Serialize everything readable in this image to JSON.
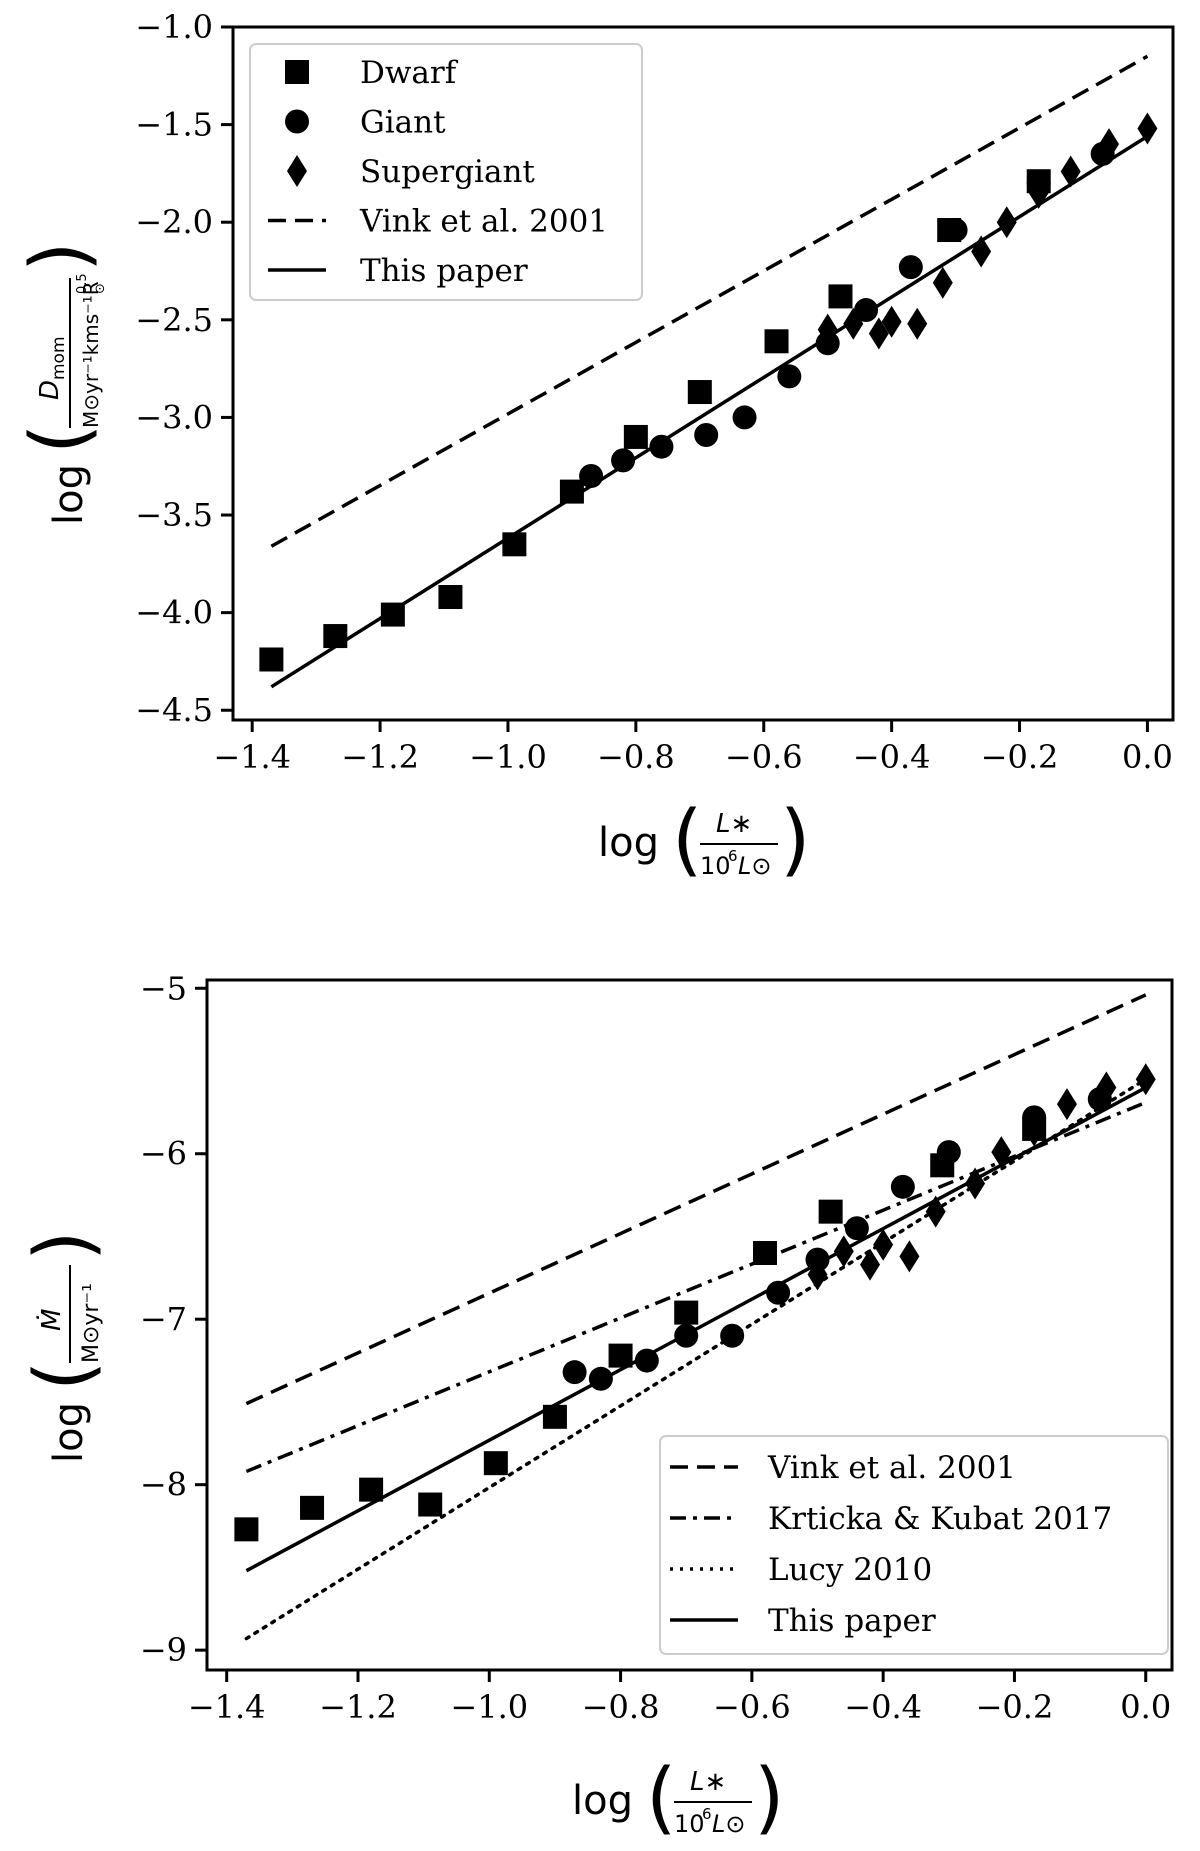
{
  "chart_data": [
    {
      "id": "top",
      "type": "scatter",
      "title": "",
      "xlabel": "log(L*/10^6 L⊙)",
      "ylabel": "log(D_mom / M⊙ yr^-1 kms^-1 R⊙^0.5)",
      "xlim": [
        -1.43,
        0.04
      ],
      "ylim": [
        -4.55,
        -1.0
      ],
      "xticks": [
        -1.4,
        -1.2,
        -1.0,
        -0.8,
        -0.6,
        -0.4,
        -0.2,
        0.0
      ],
      "xtick_labels": [
        "−1.4",
        "−1.2",
        "−1.0",
        "−0.8",
        "−0.6",
        "−0.4",
        "−0.2",
        "0.0"
      ],
      "yticks": [
        -4.5,
        -4.0,
        -3.5,
        -3.0,
        -2.5,
        -2.0,
        -1.5,
        -1.0
      ],
      "ytick_labels": [
        "−4.5",
        "−4.0",
        "−3.5",
        "−3.0",
        "−2.5",
        "−2.0",
        "−1.5",
        "−1.0"
      ],
      "legend_position": "upper-left",
      "series": [
        {
          "name": "Dwarf",
          "marker": "square",
          "x": [
            -1.37,
            -1.27,
            -1.18,
            -1.09,
            -0.99,
            -0.9,
            -0.8,
            -0.7,
            -0.58,
            -0.48,
            -0.31,
            -0.17
          ],
          "y": [
            -4.24,
            -4.12,
            -4.01,
            -3.92,
            -3.65,
            -3.38,
            -3.1,
            -2.87,
            -2.61,
            -2.38,
            -2.04,
            -1.79
          ]
        },
        {
          "name": "Giant",
          "marker": "circle",
          "x": [
            -0.87,
            -0.82,
            -0.76,
            -0.69,
            -0.63,
            -0.56,
            -0.5,
            -0.44,
            -0.37,
            -0.3,
            -0.17,
            -0.07
          ],
          "y": [
            -3.3,
            -3.22,
            -3.15,
            -3.09,
            -3.0,
            -2.79,
            -2.62,
            -2.45,
            -2.23,
            -2.04,
            -1.8,
            -1.65
          ]
        },
        {
          "name": "Supergiant",
          "marker": "diamond",
          "x": [
            -0.5,
            -0.46,
            -0.42,
            -0.4,
            -0.36,
            -0.32,
            -0.26,
            -0.22,
            -0.17,
            -0.12,
            -0.06,
            0.0
          ],
          "y": [
            -2.55,
            -2.52,
            -2.57,
            -2.51,
            -2.52,
            -2.31,
            -2.15,
            -2.0,
            -1.85,
            -1.74,
            -1.6,
            -1.52
          ]
        },
        {
          "name": "Vink et al. 2001",
          "style": "dashed",
          "x": [
            -1.37,
            0.0
          ],
          "y": [
            -3.66,
            -1.15
          ]
        },
        {
          "name": "This paper",
          "style": "solid",
          "x": [
            -1.37,
            0.0
          ],
          "y": [
            -4.38,
            -1.56
          ]
        }
      ]
    },
    {
      "id": "bottom",
      "type": "scatter",
      "title": "",
      "xlabel": "log(L*/10^6 L⊙)",
      "ylabel": "log(Ṁ / M⊙ yr^-1)",
      "xlim": [
        -1.43,
        0.04
      ],
      "ylim": [
        -9.12,
        -4.95
      ],
      "xticks": [
        -1.4,
        -1.2,
        -1.0,
        -0.8,
        -0.6,
        -0.4,
        -0.2,
        0.0
      ],
      "xtick_labels": [
        "−1.4",
        "−1.2",
        "−1.0",
        "−0.8",
        "−0.6",
        "−0.4",
        "−0.2",
        "0.0"
      ],
      "yticks": [
        -9,
        -8,
        -7,
        -6,
        -5
      ],
      "ytick_labels": [
        "−9",
        "−8",
        "−7",
        "−6",
        "−5"
      ],
      "legend_position": "lower-right",
      "series": [
        {
          "name": "Dwarf",
          "marker": "square",
          "x": [
            -1.37,
            -1.27,
            -1.18,
            -1.09,
            -0.99,
            -0.9,
            -0.8,
            -0.7,
            -0.58,
            -0.48,
            -0.31,
            -0.17
          ],
          "y": [
            -8.27,
            -8.14,
            -8.03,
            -8.12,
            -7.87,
            -7.59,
            -7.22,
            -6.96,
            -6.6,
            -6.35,
            -6.07,
            -5.85
          ]
        },
        {
          "name": "Giant",
          "marker": "circle",
          "x": [
            -0.87,
            -0.83,
            -0.76,
            -0.7,
            -0.63,
            -0.56,
            -0.5,
            -0.44,
            -0.37,
            -0.3,
            -0.17,
            -0.07
          ],
          "y": [
            -7.32,
            -7.36,
            -7.25,
            -7.1,
            -7.1,
            -6.84,
            -6.64,
            -6.45,
            -6.2,
            -5.99,
            -5.78,
            -5.67
          ]
        },
        {
          "name": "Supergiant",
          "marker": "diamond",
          "x": [
            -0.5,
            -0.46,
            -0.42,
            -0.4,
            -0.36,
            -0.32,
            -0.26,
            -0.22,
            -0.17,
            -0.12,
            -0.06,
            0.0
          ],
          "y": [
            -6.73,
            -6.59,
            -6.67,
            -6.55,
            -6.62,
            -6.35,
            -6.18,
            -5.99,
            -5.86,
            -5.7,
            -5.6,
            -5.55
          ]
        },
        {
          "name": "Vink et al. 2001",
          "style": "dashed",
          "x": [
            -1.37,
            0.0
          ],
          "y": [
            -7.51,
            -5.04
          ]
        },
        {
          "name": "Krticka & Kubat 2017",
          "style": "dashdot",
          "x": [
            -1.37,
            0.0
          ],
          "y": [
            -7.92,
            -5.69
          ]
        },
        {
          "name": "Lucy 2010",
          "style": "dotted",
          "x": [
            -1.37,
            0.0
          ],
          "y": [
            -8.93,
            -5.55
          ]
        },
        {
          "name": "This paper",
          "style": "solid",
          "x": [
            -1.37,
            0.0
          ],
          "y": [
            -8.52,
            -5.6
          ]
        }
      ]
    }
  ],
  "labels": {
    "log": "log",
    "top_y_numerator": "D",
    "top_y_numerator_sub": "mom",
    "top_y_denominator": "M⊙yr⁻¹kms⁻¹R",
    "top_y_denominator_sub": "⊙",
    "top_y_denominator_sup": "0.5",
    "bottom_y_numerator": "Ṁ",
    "bottom_y_denominator": "M⊙yr⁻¹",
    "x_numerator": "L∗",
    "x_denominator_base": "10",
    "x_denominator_exp": "6",
    "x_denominator_L": "L⊙"
  }
}
